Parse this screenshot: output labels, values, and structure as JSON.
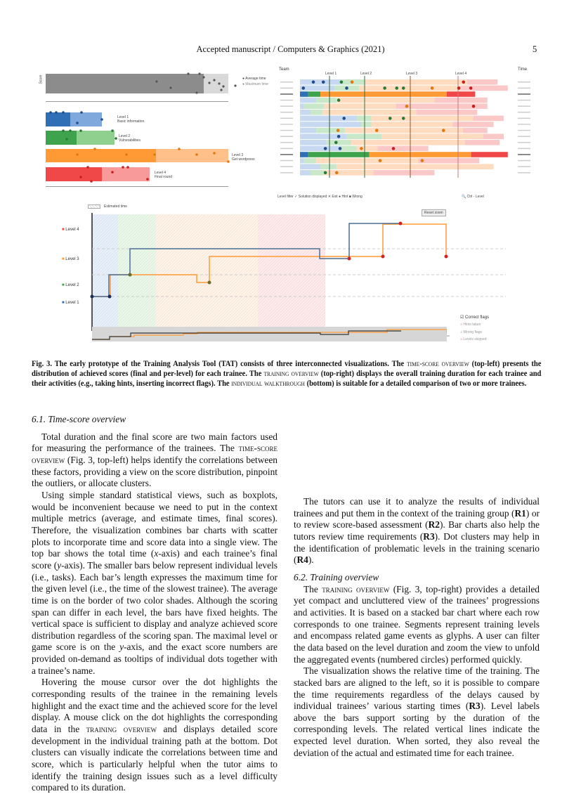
{
  "header": {
    "journal": "Accepted manuscript / Computers & Graphics (2021)",
    "page": "5"
  },
  "figure": {
    "time_score": {
      "y_label": "Score",
      "legend": [
        "Average time",
        "Maximum time"
      ],
      "levels": [
        {
          "name": "Level 1",
          "task": "Basic information"
        },
        {
          "name": "Level 2",
          "task": "Vulnerabilities"
        },
        {
          "name": "Level 3",
          "task": "Get wordpress"
        },
        {
          "name": "Level 4",
          "task": "Final round"
        }
      ],
      "colors": {
        "l1": "#2e6fb5",
        "l2": "#3fa34d",
        "l3": "#ff9a35",
        "l4": "#f04848",
        "gray": "#8c8c8c"
      }
    },
    "training_overview": {
      "team_header": "Team",
      "time_header": "Time",
      "level_labels": [
        "Level 1",
        "Level 2",
        "Level 3",
        "Level 4"
      ],
      "rows": [
        [
          0.2,
          0.12,
          0.5,
          0.15
        ],
        [
          0.17,
          0.12,
          0.5,
          0.23
        ],
        [
          0.04,
          0.06,
          0.62,
          0.14
        ],
        [
          0.08,
          0.1,
          0.48,
          0.26
        ],
        [
          0.02,
          0.1,
          0.35,
          0.45
        ],
        [
          0.05,
          0.06,
          0.46,
          0.3
        ],
        [
          0.28,
          0.07,
          0.5,
          0.15
        ],
        [
          0.3,
          0.05,
          0.4,
          0.2
        ],
        [
          0.08,
          0.14,
          0.58,
          0.12
        ],
        [
          0.23,
          0.17,
          0.5,
          0.1
        ],
        [
          0.13,
          0.12,
          0.56,
          0.17
        ],
        [
          0.2,
          0.08,
          0.1,
          0.25
        ],
        [
          0.04,
          0.3,
          0.5,
          0.18
        ],
        [
          0.02,
          0.06,
          0.5,
          0.3
        ],
        [
          0.1,
          0.08,
          0.77,
          0
        ],
        [
          0.05,
          0.07,
          0.24,
          0.3
        ]
      ],
      "highlighted_rows": [
        2,
        12
      ],
      "footer": [
        "Level filter",
        "Solution displayed",
        "Exit",
        "Hint",
        "Wrong"
      ],
      "zoom_label": "Ctrl - Level"
    },
    "walkthrough": {
      "estimated_time": "Estimated time",
      "reset_zoom": "Reset zoom",
      "levels": [
        "Level 4",
        "Level 3",
        "Level 2",
        "Level 1"
      ],
      "legend": [
        "Correct flags",
        "Hints taken",
        "Wrong flags",
        "Levels skipped"
      ]
    }
  },
  "caption": {
    "lead": "Fig. 3. The early prototype of the Training Analysis Tool (TAT) consists of three interconnected visualizations. The ",
    "sc1": "time-score overview",
    "t1": " (top-left) presents the distribution of achieved scores (final and per-level) for each trainee. The ",
    "sc2": "training overview",
    "t2": " (top-right) displays the overall training duration for each trainee and their activities (e.g., taking hints, inserting incorrect flags). The ",
    "sc3": "individual walkthrough",
    "t3": " (bottom) is suitable for a detailed comparison of two or more trainees."
  },
  "sections": {
    "s61_title": "6.1.  Time-score overview",
    "p1a": "Total duration and the final score are two main factors used for measuring the performance of the trainees. The ",
    "p1sc": "time-score overview",
    "p1b": " (Fig. 3, top-left) helps identify the correlations between these factors, providing a view on the score distribution, pinpoint the outliers, or allocate clusters.",
    "p2a": "Using simple standard statistical views, such as boxplots, would be inconvenient because we need to put in the context multiple metrics (average, and estimate times, final scores). Therefore, the visualization combines bar charts with scatter plots to incorporate time and score data into a single view. The top bar shows the total time (",
    "p2x": "x",
    "p2b": "-axis) and each trainee’s final score (",
    "p2y": "y",
    "p2c": "-axis). The smaller bars below represent individual levels (i.e., tasks). Each bar’s length expresses the maximum time for the given level (i.e., the time of the slowest trainee).  The average time is on the border of two color shades. Although the scoring span can differ in each level, the bars have fixed heights. The vertical space is sufficient to display and analyze achieved score distribution regardless of the scoring span.  The maximal level or game score is on the ",
    "p2y2": "y",
    "p2d": "-axis, and the exact score numbers are provided on-demand as tooltips of individual dots together with a trainee’s name.",
    "p3a": "Hovering the mouse cursor over the dot highlights the corresponding results of the trainee in the remaining levels highlight and the exact time and the achieved score for the level display. A mouse click on the dot highlights the corresponding data in the ",
    "p3sc": "training overview",
    "p3b": " and displays detailed score development in the individual training path at the bottom.  Dot clusters can visually indicate the correlations between time and score, which is particularly helpful when the tutor aims to identify the training design issues such as a level difficulty compared to its duration.",
    "p4a": "The tutors can use it to analyze the results of individual trainees and put them in the context of the training group (",
    "r1": "R1",
    "p4b": ") or to review score-based assessment (",
    "r2": "R2",
    "p4c": "). Bar charts also help the tutors review time requirements (",
    "r3": "R3",
    "p4d": "). Dot clusters may help in the identification of problematic levels in the training scenario (",
    "r4": "R4",
    "p4e": ").",
    "s62_title": "6.2.  Training overview",
    "p5a": "The ",
    "p5sc": "training overview",
    "p5b": " (Fig. 3, top-right) provides a detailed yet compact and uncluttered view of the trainees’ progressions and activities. It is based on a stacked bar chart where each row corresponds to one trainee.  Segments represent training levels and encompass related game events as glyphs.  A user can filter the data based on the level duration and zoom the view to unfold the aggregated events (numbered circles) performed quickly.",
    "p6a": "The visualization shows the relative time of the training. The stacked bars are aligned to the left, so it is possible to compare the time requirements regardless of the delays caused by individual trainees’ various starting times (",
    "r3b": "R3",
    "p6b": "). Level labels above the bars support sorting by the duration of the corresponding levels. The related vertical lines indicate the expected level duration. When sorted, they also reveal the deviation of the actual and estimated time for each trainee."
  }
}
